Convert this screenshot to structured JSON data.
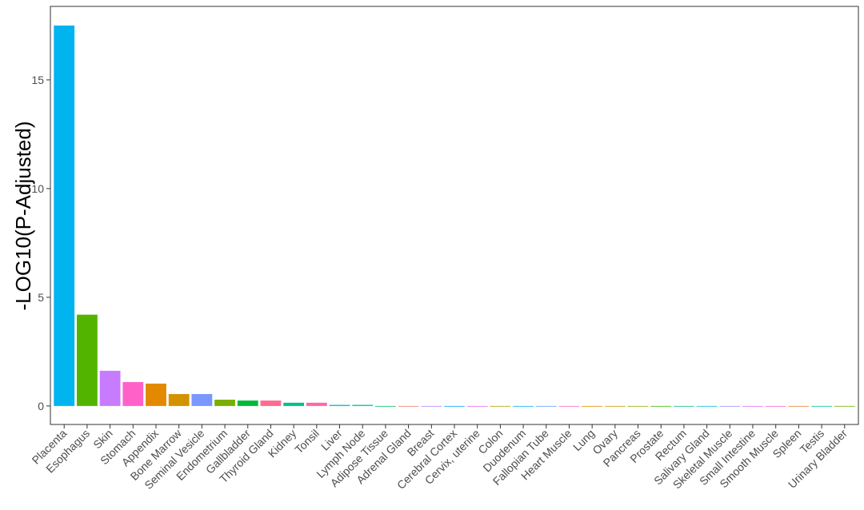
{
  "chart_data": {
    "type": "bar",
    "y_label": "-LOG10(P-Adjusted)",
    "categories": [
      "Placenta",
      "Esophagus",
      "Skin",
      "Stomach",
      "Appendix",
      "Bone Marrow",
      "Seminal Vesicle",
      "Endometrium",
      "Gallbladder",
      "Thyroid Gland",
      "Kidney",
      "Tonsil",
      "Liver",
      "Lymph Node",
      "Adipose Tissue",
      "Adrenal Gland",
      "Breast",
      "Cerebral Cortex",
      "Cervix, uterine",
      "Colon",
      "Duodenum",
      "Fallopian Tube",
      "Heart Muscle",
      "Lung",
      "Ovary",
      "Pancreas",
      "Prostate",
      "Rectum",
      "Salivary Gland",
      "Skeletal Muscle",
      "Small Intestine",
      "Smooth Muscle",
      "Spleen",
      "Testis",
      "Urinary Bladder"
    ],
    "values": [
      17.5,
      4.2,
      1.62,
      1.1,
      1.03,
      0.55,
      0.55,
      0.29,
      0.25,
      0.25,
      0.15,
      0.15,
      0.05,
      0.05,
      0,
      0,
      0,
      0,
      0,
      0,
      0,
      0,
      0,
      0,
      0,
      0,
      0,
      0,
      0,
      0,
      0,
      0,
      0,
      0,
      0
    ],
    "colors": [
      "#00B4EF",
      "#53B400",
      "#C77CFF",
      "#FF61C9",
      "#E38900",
      "#D39200",
      "#7997FF",
      "#7CAE00",
      "#00BA38",
      "#FF6C91",
      "#00C08B",
      "#FF66A8",
      "#00BFC4",
      "#00C1A3",
      "#00BD5C",
      "#F8766D",
      "#B385FF",
      "#00A9FF",
      "#EF67EB",
      "#A3A500",
      "#00B0F6",
      "#619CFF",
      "#FF62BC",
      "#DB8E00",
      "#C09B00",
      "#8EAB00",
      "#39B600",
      "#00BF7D",
      "#00BBDA",
      "#9590FF",
      "#E76BF3",
      "#FD61D1",
      "#EA8331",
      "#00C19A",
      "#6BB100"
    ],
    "ylim": [
      -0.85,
      18.38
    ],
    "yticks": [
      0,
      5,
      10,
      15
    ]
  }
}
